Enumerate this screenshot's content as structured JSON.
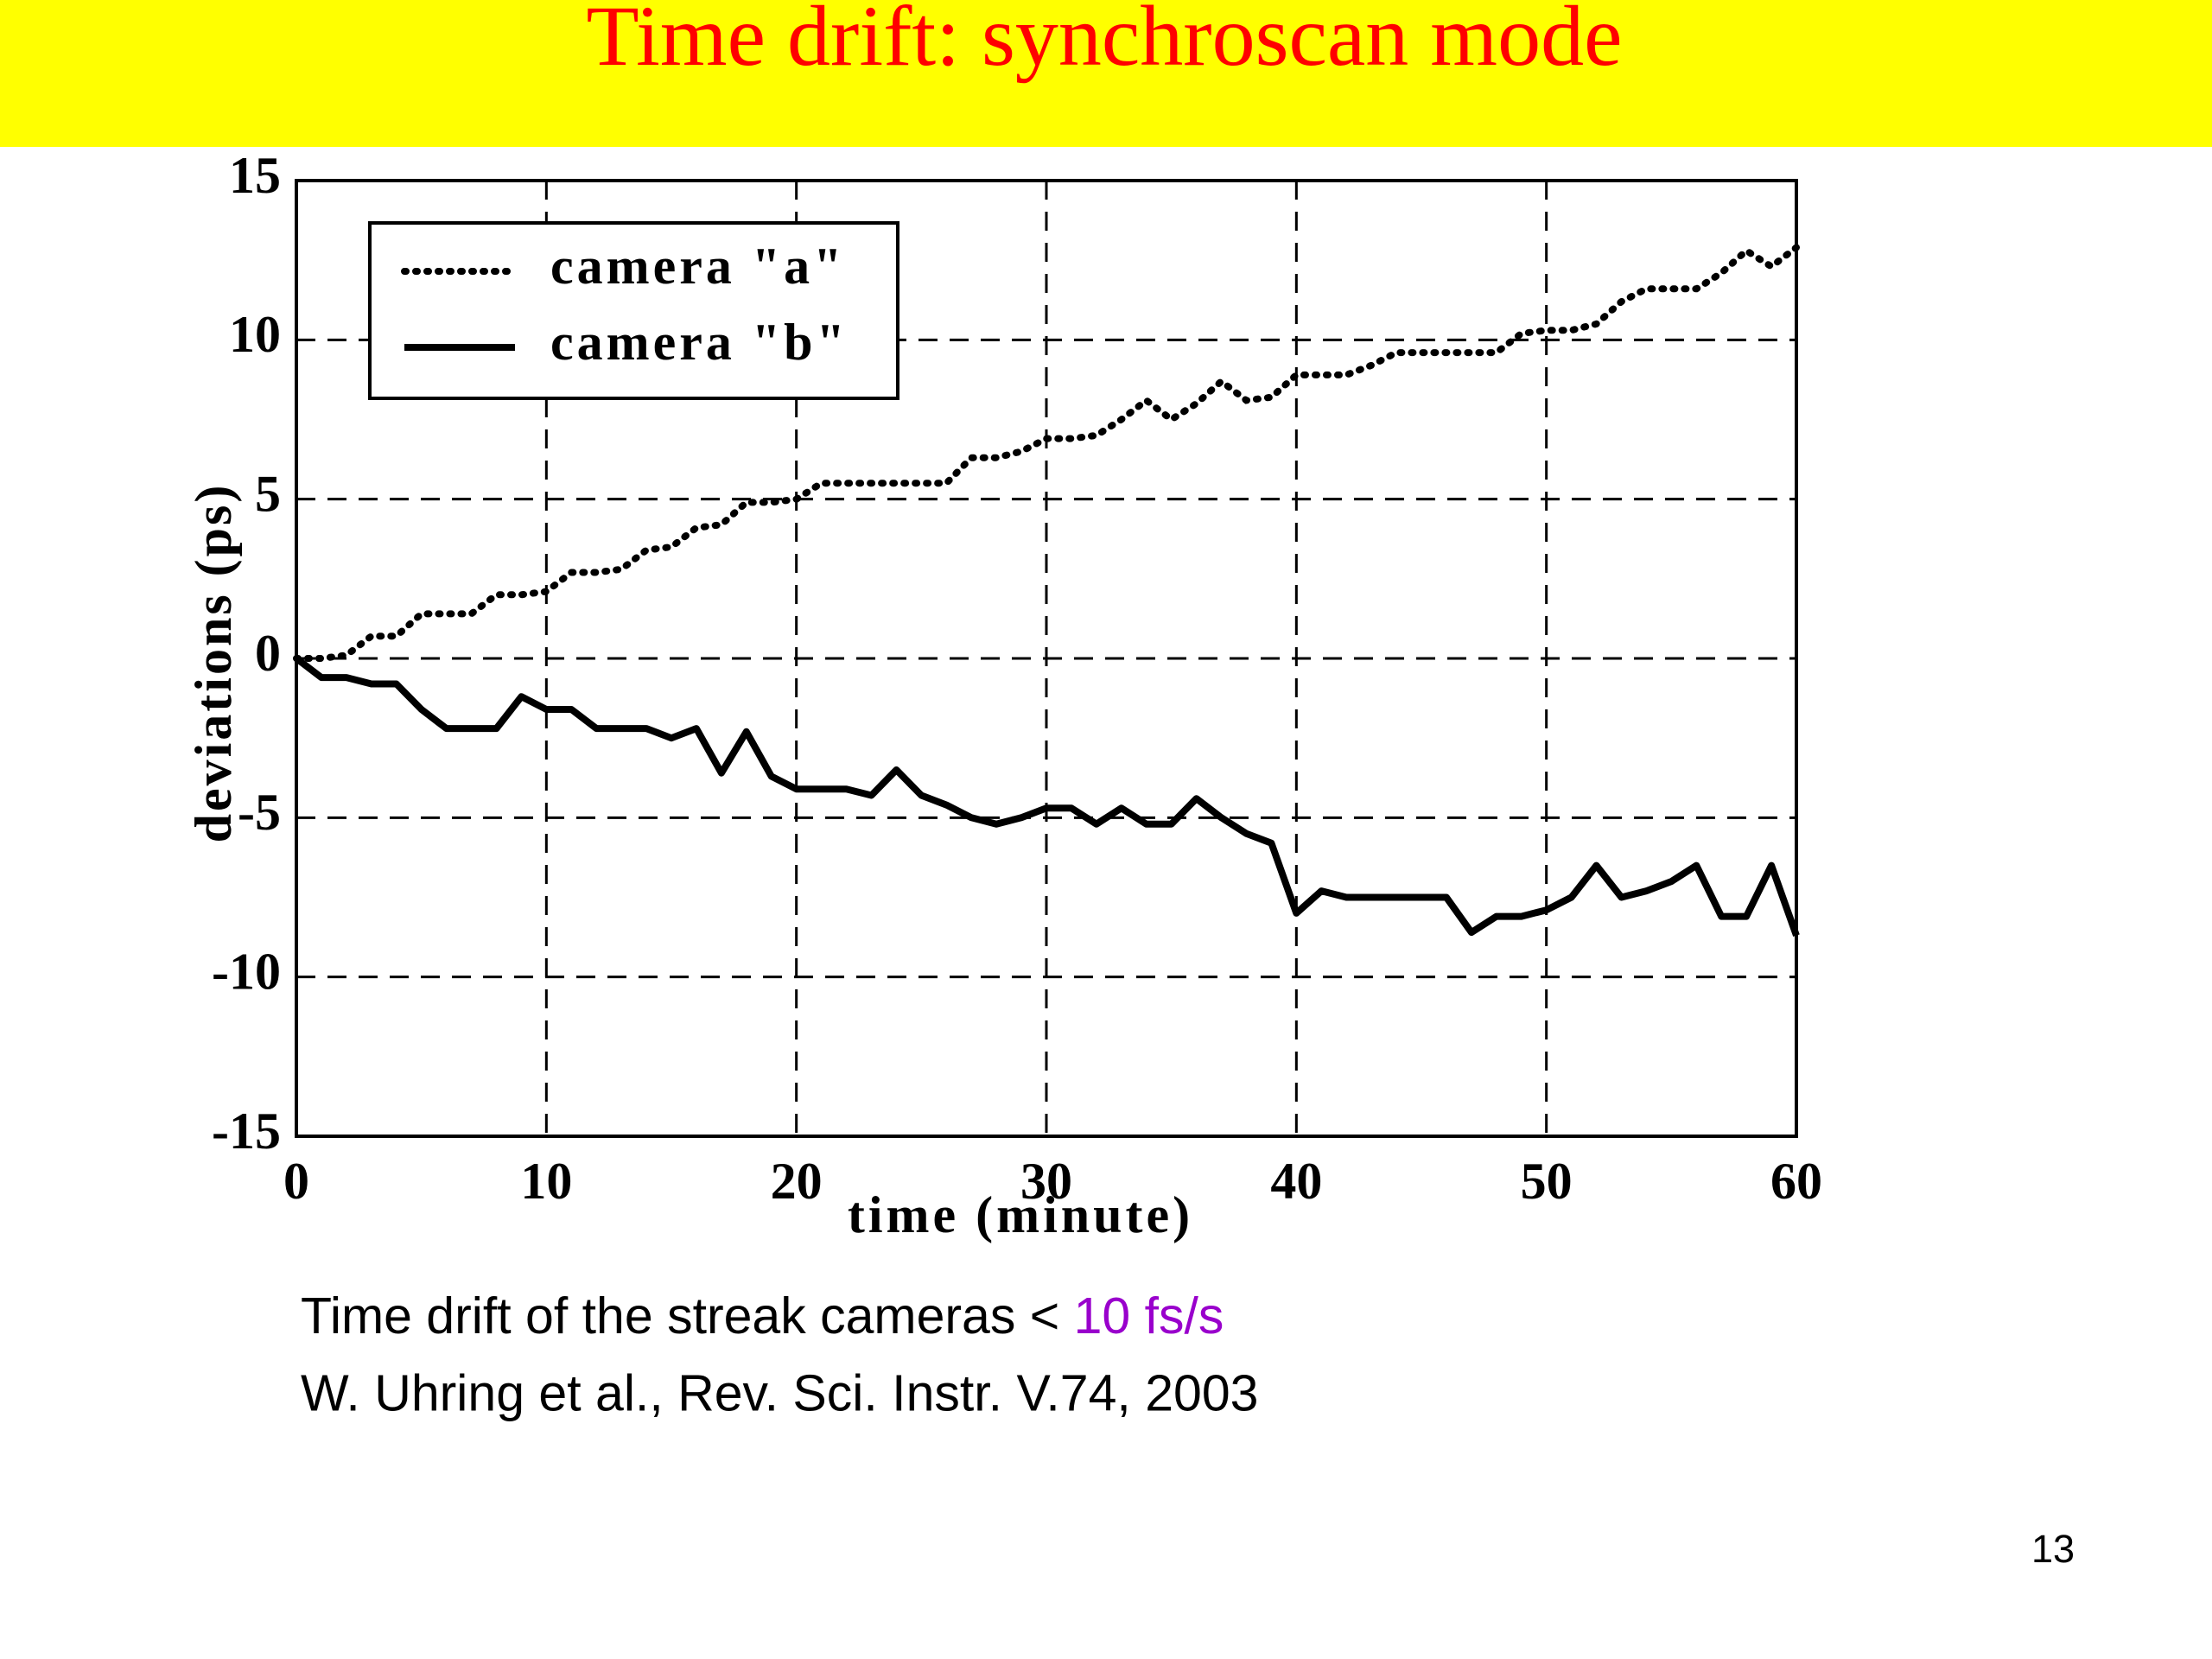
{
  "title": "Time drift: synchroscan mode",
  "chart_data": {
    "type": "line",
    "xlabel": "time (minute)",
    "ylabel": "deviations (ps)",
    "x": [
      0,
      1,
      2,
      3,
      4,
      5,
      6,
      7,
      8,
      9,
      10,
      11,
      12,
      13,
      14,
      15,
      16,
      17,
      18,
      19,
      20,
      21,
      22,
      23,
      24,
      25,
      26,
      27,
      28,
      29,
      30,
      31,
      32,
      33,
      34,
      35,
      36,
      37,
      38,
      39,
      40,
      41,
      42,
      43,
      44,
      45,
      46,
      47,
      48,
      49,
      50,
      51,
      52,
      53,
      54,
      55,
      56,
      57,
      58,
      59,
      60
    ],
    "series": [
      {
        "name": "camera \"a\"",
        "color": "#000000",
        "linestyle": "dotted",
        "values": [
          0,
          0,
          0.1,
          0.7,
          0.7,
          1.4,
          1.4,
          1.4,
          2.0,
          2.0,
          2.1,
          2.7,
          2.7,
          2.8,
          3.4,
          3.5,
          4.1,
          4.2,
          4.9,
          4.9,
          5.0,
          5.5,
          5.5,
          5.5,
          5.5,
          5.5,
          5.5,
          6.3,
          6.3,
          6.5,
          6.9,
          6.9,
          7.0,
          7.5,
          8.1,
          7.5,
          8.0,
          8.7,
          8.1,
          8.2,
          8.9,
          8.9,
          8.9,
          9.2,
          9.6,
          9.6,
          9.6,
          9.6,
          9.6,
          10.2,
          10.3,
          10.3,
          10.5,
          11.2,
          11.6,
          11.6,
          11.6,
          12.1,
          12.8,
          12.3,
          12.9
        ]
      },
      {
        "name": "camera \"b\"",
        "color": "#000000",
        "linestyle": "solid",
        "values": [
          0,
          -0.6,
          -0.6,
          -0.8,
          -0.8,
          -1.6,
          -2.2,
          -2.2,
          -2.2,
          -1.2,
          -1.6,
          -1.6,
          -2.2,
          -2.2,
          -2.2,
          -2.5,
          -2.2,
          -3.6,
          -2.3,
          -3.7,
          -4.1,
          -4.1,
          -4.1,
          -4.3,
          -3.5,
          -4.3,
          -4.6,
          -5.0,
          -5.2,
          -5.0,
          -4.7,
          -4.7,
          -5.2,
          -4.7,
          -5.2,
          -5.2,
          -4.4,
          -5.0,
          -5.5,
          -5.8,
          -8.0,
          -7.3,
          -7.5,
          -7.5,
          -7.5,
          -7.5,
          -7.5,
          -8.6,
          -8.1,
          -8.1,
          -7.9,
          -7.5,
          -6.5,
          -7.5,
          -7.3,
          -7.0,
          -6.5,
          -8.1,
          -8.1,
          -6.5,
          -8.7
        ]
      }
    ],
    "xlim": [
      0,
      60
    ],
    "xticks": [
      0,
      10,
      20,
      30,
      40,
      50,
      60
    ],
    "ylim": [
      -15,
      15
    ],
    "yticks": [
      -15,
      -10,
      -5,
      0,
      5,
      10,
      15
    ],
    "grid": true,
    "legend": "upper left"
  },
  "caption": {
    "text": "Time drift of the streak cameras < ",
    "highlight": "10 fs/s"
  },
  "reference": "W. Uhring et al., Rev. Sci. Instr. V.74, 2003",
  "page_number": "13"
}
